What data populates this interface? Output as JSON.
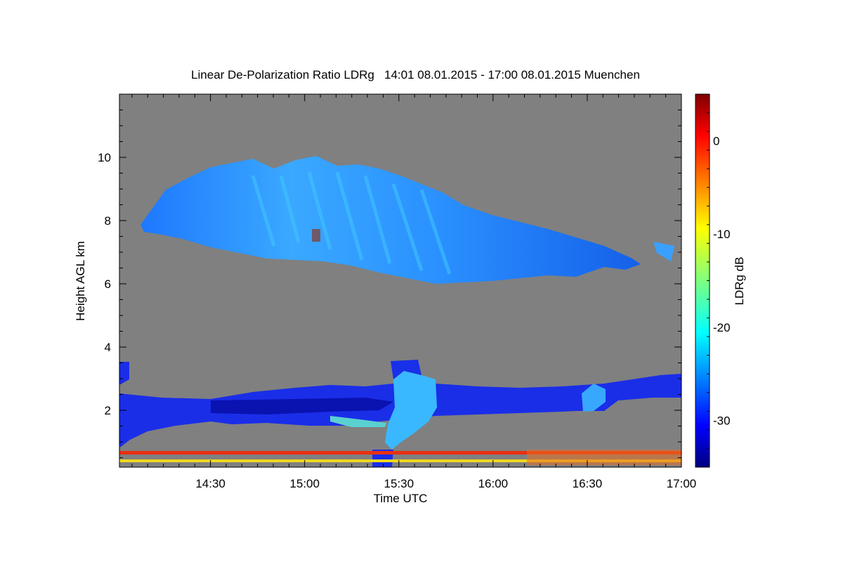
{
  "chart_data": {
    "type": "heatmap",
    "title": "Linear De-Polarization Ratio LDRg   14:01 08.01.2015 - 17:00 08.01.2015 Muenchen",
    "xlabel": "Time UTC",
    "ylabel": "Height AGL km",
    "colorbar_label": "LDRg dB",
    "x_ticks": [
      "14:30",
      "15:00",
      "15:30",
      "16:00",
      "16:30",
      "17:00"
    ],
    "y_ticks": [
      2,
      4,
      6,
      8,
      10
    ],
    "colorbar_ticks": [
      0,
      -10,
      -20,
      -30
    ],
    "xlim": [
      "14:01",
      "17:00"
    ],
    "ylim_km": [
      0.2,
      12
    ],
    "zlim_db": [
      -35,
      5
    ],
    "background_color": "#808080",
    "colormap": "jet",
    "features": [
      {
        "name": "cirrus layer",
        "time_start": "14:09",
        "time_end": "16:55",
        "base_km": 6.1,
        "top_km": 9.7,
        "ldr_db": -23
      },
      {
        "name": "low cloud layer",
        "time_start": "14:01",
        "time_end": "17:00",
        "base_km": 1.2,
        "top_km": 3.0,
        "ldr_db": -32
      },
      {
        "name": "depolarizing plume",
        "time_start": "15:28",
        "time_end": "15:42",
        "base_km": 0.2,
        "top_km": 3.5,
        "ldr_db": -22
      },
      {
        "name": "surface noise",
        "time_start": "14:01",
        "time_end": "17:00",
        "base_km": 0.2,
        "top_km": 0.7,
        "ldr_db": -5
      }
    ]
  }
}
